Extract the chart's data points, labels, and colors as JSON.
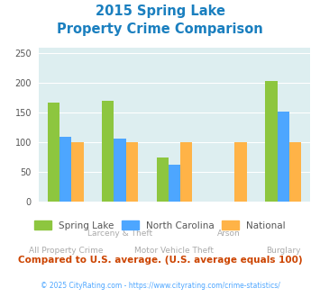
{
  "title": "2015 Spring Lake\nProperty Crime Comparison",
  "spring_lake": [
    168,
    170,
    75,
    0,
    203
  ],
  "north_carolina": [
    110,
    107,
    62,
    0,
    152
  ],
  "national": [
    100,
    100,
    100,
    100,
    100
  ],
  "n_groups": 5,
  "color_spring_lake": "#8dc63f",
  "color_nc": "#4da6ff",
  "color_national": "#ffb347",
  "ylim": [
    0,
    260
  ],
  "yticks": [
    0,
    50,
    100,
    150,
    200,
    250
  ],
  "bg_color": "#ddeef0",
  "legend_labels": [
    "Spring Lake",
    "North Carolina",
    "National"
  ],
  "row1_labels": [
    [
      "Larceny & Theft",
      1
    ],
    [
      "Arson",
      3
    ]
  ],
  "row2_labels": [
    [
      "All Property Crime",
      0
    ],
    [
      "Motor Vehicle Theft",
      2
    ],
    [
      "Burglary",
      4
    ]
  ],
  "footnote1": "Compared to U.S. average. (U.S. average equals 100)",
  "footnote2": "© 2025 CityRating.com - https://www.cityrating.com/crime-statistics/",
  "title_color": "#1a7fbf",
  "label_color": "#aaaaaa",
  "footnote1_color": "#cc4400",
  "footnote2_color": "#4da6ff"
}
